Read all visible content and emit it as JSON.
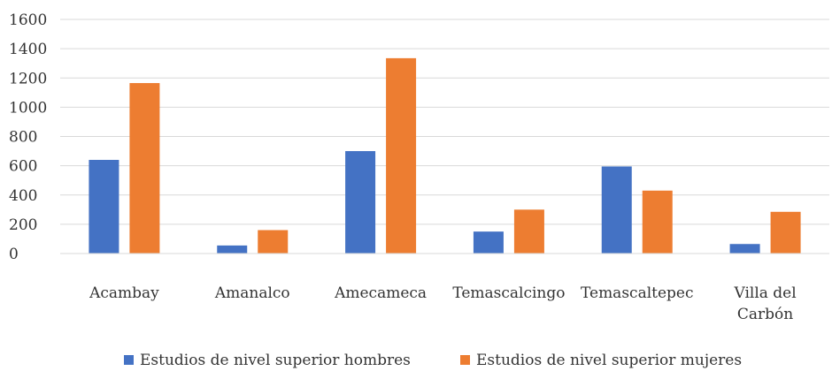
{
  "chart_data": {
    "type": "bar",
    "categories": [
      [
        "Acambay"
      ],
      [
        "Amanalco"
      ],
      [
        "Amecameca"
      ],
      [
        "Temascalcingo"
      ],
      [
        "Temascaltepec"
      ],
      [
        "Villa del",
        "Carbón"
      ]
    ],
    "series": [
      {
        "name": "Estudios de nivel superior hombres",
        "color": "#4472c4",
        "values": [
          640,
          55,
          700,
          150,
          595,
          65
        ]
      },
      {
        "name": "Estudios de nivel superior mujeres",
        "color": "#ed7d31",
        "values": [
          1165,
          160,
          1335,
          300,
          430,
          285
        ]
      }
    ],
    "y_ticks": [
      "0",
      "200",
      "400",
      "600",
      "800",
      "1000",
      "1200",
      "1400",
      "1600"
    ],
    "ylim": [
      0,
      1600
    ],
    "grid": true,
    "gridline_color": "#d9d9d9",
    "legend_position": "bottom"
  }
}
